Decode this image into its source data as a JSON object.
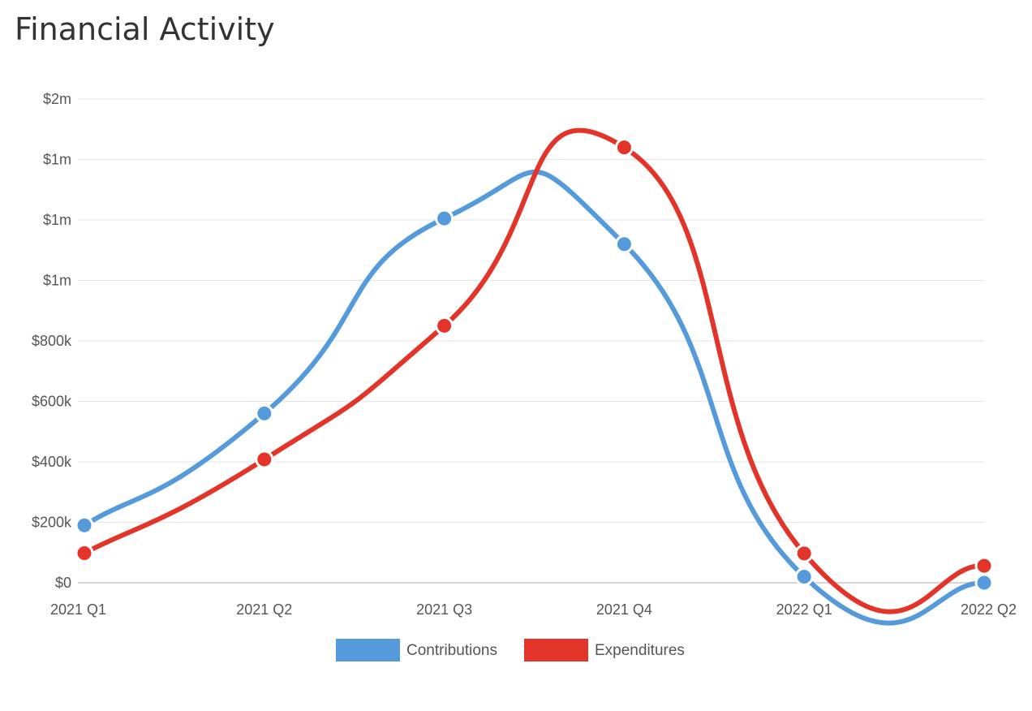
{
  "title": "Financial Activity",
  "chart_data": {
    "type": "line",
    "title": "Financial Activity",
    "categories": [
      "2021 Q1",
      "2021 Q2",
      "2021 Q3",
      "2021 Q4",
      "2022 Q1",
      "2022 Q2"
    ],
    "yticks": [
      {
        "value": 0,
        "label": "$0"
      },
      {
        "value": 200000,
        "label": "$200k"
      },
      {
        "value": 400000,
        "label": "$400k"
      },
      {
        "value": 600000,
        "label": "$600k"
      },
      {
        "value": 800000,
        "label": "$800k"
      },
      {
        "value": 1000000,
        "label": "$1m"
      },
      {
        "value": 1200000,
        "label": "$1m"
      },
      {
        "value": 1400000,
        "label": "$1m"
      },
      {
        "value": 1600000,
        "label": "$2m"
      }
    ],
    "ylim": [
      0,
      1600000
    ],
    "grid": true,
    "legend_position": "bottom",
    "series": [
      {
        "name": "Contributions",
        "color": "#559ADB",
        "values": [
          190000,
          560000,
          1205000,
          1120000,
          20000,
          0
        ]
      },
      {
        "name": "Expenditures",
        "color": "#E3342A",
        "values": [
          98000,
          408000,
          850000,
          1440000,
          97000,
          56000
        ]
      }
    ]
  }
}
